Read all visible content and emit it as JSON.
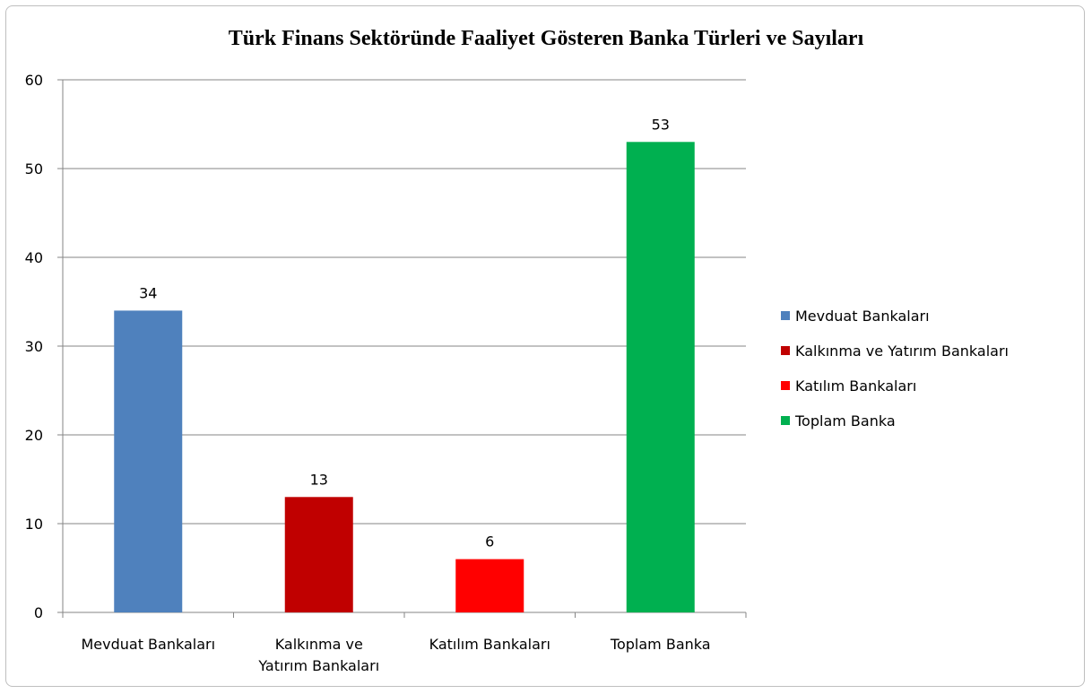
{
  "chart_data": {
    "type": "bar",
    "title": "Türk Finans Sektöründe Faaliyet Gösteren Banka Türleri ve Sayıları",
    "categories": [
      "Mevduat Bankaları",
      "Kalkınma ve Yatırım Bankaları",
      "Katılım Bankaları",
      "Toplam Banka"
    ],
    "values": [
      34,
      13,
      6,
      53
    ],
    "data_labels": [
      "34",
      "13",
      "6",
      "53"
    ],
    "colors": [
      "#4f81bd",
      "#c00000",
      "#ff0000",
      "#00b050"
    ],
    "y_ticks": [
      "0",
      "10",
      "20",
      "30",
      "40",
      "50",
      "60"
    ],
    "ylim": [
      0,
      60
    ],
    "grid": true,
    "legend_position": "right",
    "legend": [
      {
        "label": "Mevduat Bankaları",
        "color": "#4f81bd"
      },
      {
        "label": "Kalkınma ve Yatırım Bankaları",
        "color": "#c00000"
      },
      {
        "label": "Katılım Bankaları",
        "color": "#ff0000"
      },
      {
        "label": "Toplam Banka",
        "color": "#00b050"
      }
    ]
  }
}
